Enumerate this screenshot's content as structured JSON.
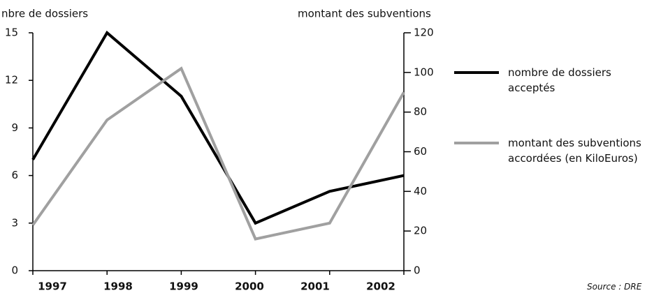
{
  "chart_data": {
    "type": "line",
    "y_label": "nbre de dossiers",
    "y2_label": "montant des subventions",
    "categories": [
      "1997",
      "1998",
      "1999",
      "2000",
      "2001",
      "2002"
    ],
    "series": [
      {
        "name": "nombre de dossiers acceptés",
        "color": "#000000",
        "values": [
          7,
          15,
          11,
          3,
          5,
          6
        ]
      },
      {
        "name": "montant des subventions accordées (en KiloEuros)",
        "color": "#a0a0a0",
        "axis": "y2",
        "values": [
          23,
          76,
          102,
          16,
          24,
          90
        ]
      }
    ],
    "ylim": [
      0,
      15
    ],
    "yticks": [
      0,
      3,
      6,
      9,
      12,
      15
    ],
    "y2lim": [
      0,
      120
    ],
    "y2ticks": [
      0,
      20,
      40,
      60,
      80,
      100,
      120
    ],
    "source": "Source : DRE"
  }
}
